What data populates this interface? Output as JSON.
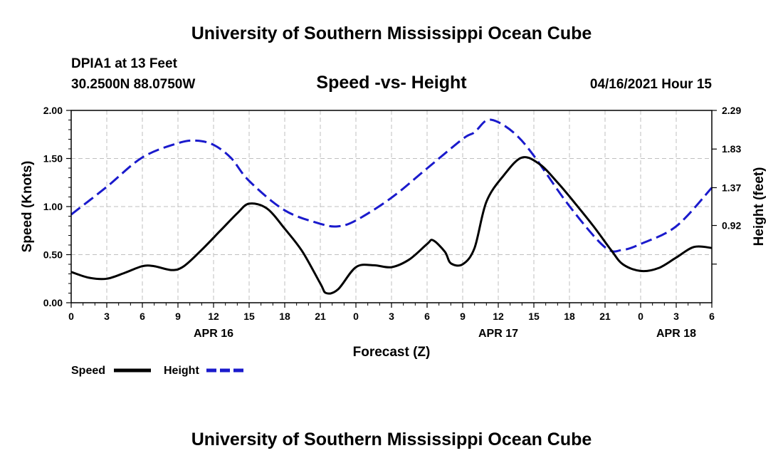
{
  "title_top": "University of Southern Mississippi Ocean Cube",
  "title_bottom": "University of Southern Mississippi Ocean Cube",
  "station": "DPIA1 at 13 Feet",
  "coords": "30.2500N  88.0750W",
  "forecast_time": "04/16/2021 Hour 15",
  "colors": {
    "speed": "#000000",
    "height": "#1a1acc"
  },
  "chart_data": {
    "type": "line",
    "title": "Speed -vs- Height",
    "xlabel": "Forecast (Z)",
    "ylabel": "Speed (Knots)",
    "y2label": "Height (feet)",
    "xlim": [
      0,
      54
    ],
    "ylim": [
      0,
      2.0
    ],
    "y2lim": [
      0,
      2.29
    ],
    "x_ticks": [
      0,
      3,
      6,
      9,
      12,
      15,
      18,
      21,
      24,
      27,
      30,
      33,
      36,
      39,
      42,
      45,
      48,
      51,
      54
    ],
    "x_tick_labels": [
      "0",
      "3",
      "6",
      "9",
      "12",
      "15",
      "18",
      "21",
      "0",
      "3",
      "6",
      "9",
      "12",
      "15",
      "18",
      "21",
      "0",
      "3",
      "6"
    ],
    "y_ticks": [
      0,
      0.5,
      1.0,
      1.5,
      2.0
    ],
    "y_tick_labels": [
      "0.00",
      "0.50",
      "1.00",
      "1.50",
      "2.00"
    ],
    "y2_ticks": [
      0.46,
      0.92,
      1.37,
      1.83,
      2.29
    ],
    "y2_tick_labels": [
      "",
      "0.92",
      "1.37",
      "1.83",
      "2.29"
    ],
    "date_labels": [
      {
        "x": 12,
        "label": "APR 16"
      },
      {
        "x": 36,
        "label": "APR 17"
      },
      {
        "x": 51,
        "label": "APR 18"
      }
    ],
    "grid": true,
    "legend_position": "bottom-left",
    "series": [
      {
        "name": "Speed",
        "axis": "left",
        "style": "solid",
        "x": [
          0,
          1.5,
          3,
          4.5,
          6,
          7,
          8.5,
          9.5,
          11,
          12.5,
          14,
          15,
          16.5,
          18,
          19.5,
          21,
          21.5,
          22.5,
          24,
          25.5,
          27,
          28.5,
          30,
          30.5,
          31.5,
          32,
          33,
          34,
          35,
          36.5,
          38,
          39.5,
          41,
          42.5,
          44,
          45.5,
          46.5,
          48,
          49.5,
          51,
          52.5,
          54
        ],
        "y": [
          0.32,
          0.26,
          0.25,
          0.31,
          0.38,
          0.38,
          0.34,
          0.38,
          0.55,
          0.74,
          0.93,
          1.03,
          0.98,
          0.77,
          0.53,
          0.2,
          0.1,
          0.14,
          0.37,
          0.39,
          0.37,
          0.45,
          0.61,
          0.65,
          0.53,
          0.41,
          0.4,
          0.57,
          1.05,
          1.33,
          1.51,
          1.44,
          1.25,
          1.03,
          0.8,
          0.55,
          0.4,
          0.33,
          0.36,
          0.47,
          0.58,
          0.57
        ]
      },
      {
        "name": "Height",
        "axis": "right",
        "style": "dashed",
        "x": [
          0,
          3,
          6,
          9,
          10.5,
          12,
          13.5,
          15,
          18,
          21,
          22.5,
          24,
          27,
          30,
          33,
          34,
          35,
          36,
          37.5,
          39,
          42,
          45,
          46.5,
          48,
          51,
          54
        ],
        "y": [
          1.05,
          1.38,
          1.73,
          1.9,
          1.93,
          1.88,
          1.72,
          1.45,
          1.1,
          0.94,
          0.91,
          0.98,
          1.25,
          1.6,
          1.95,
          2.03,
          2.17,
          2.15,
          2.0,
          1.75,
          1.15,
          0.66,
          0.63,
          0.7,
          0.91,
          1.37
        ]
      }
    ],
    "legend": [
      "Speed",
      "Height"
    ]
  }
}
